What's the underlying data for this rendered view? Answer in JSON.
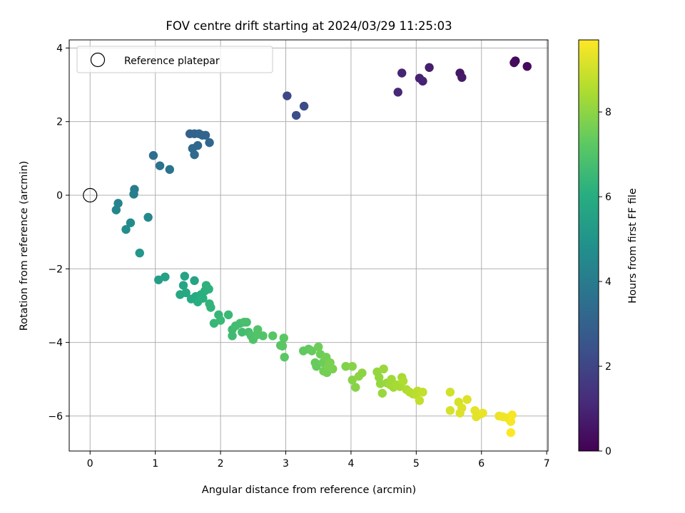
{
  "chart_data": {
    "type": "scatter",
    "title": "FOV centre drift starting at 2024/03/29 11:25:03",
    "xlabel": "Angular distance from reference (arcmin)",
    "ylabel": "Rotation from reference (arcmin)",
    "colorbar_label": "Hours from first FF file",
    "colormap": "viridis",
    "xlim": [
      -0.32,
      7.02
    ],
    "ylim": [
      -6.95,
      4.22
    ],
    "xticks": [
      0,
      1,
      2,
      3,
      4,
      5,
      6,
      7
    ],
    "yticks": [
      -6,
      -4,
      -2,
      0,
      2,
      4
    ],
    "colorbar_range": [
      0,
      9.7
    ],
    "colorbar_ticks": [
      0,
      2,
      4,
      6,
      8
    ],
    "grid": true,
    "legend": {
      "placement": "upper-left",
      "entries": [
        {
          "label": "Reference platepar",
          "marker": "open-circle"
        }
      ]
    },
    "reference": {
      "x": 0,
      "y": 0
    },
    "points": [
      {
        "x": 6.52,
        "y": 3.65,
        "t": 0.2
      },
      {
        "x": 6.5,
        "y": 3.6,
        "t": 0.3
      },
      {
        "x": 6.7,
        "y": 3.5,
        "t": 0.25
      },
      {
        "x": 5.67,
        "y": 3.32,
        "t": 0.6
      },
      {
        "x": 5.7,
        "y": 3.2,
        "t": 0.65
      },
      {
        "x": 5.2,
        "y": 3.47,
        "t": 0.8
      },
      {
        "x": 5.05,
        "y": 3.18,
        "t": 0.9
      },
      {
        "x": 5.1,
        "y": 3.1,
        "t": 0.95
      },
      {
        "x": 4.78,
        "y": 3.32,
        "t": 1.0
      },
      {
        "x": 4.72,
        "y": 2.8,
        "t": 1.1
      },
      {
        "x": 3.02,
        "y": 2.7,
        "t": 2.1
      },
      {
        "x": 3.28,
        "y": 2.42,
        "t": 2.2
      },
      {
        "x": 3.16,
        "y": 2.17,
        "t": 2.3
      },
      {
        "x": 1.53,
        "y": 1.67,
        "t": 3.0
      },
      {
        "x": 1.6,
        "y": 1.67,
        "t": 3.05
      },
      {
        "x": 1.67,
        "y": 1.67,
        "t": 3.1
      },
      {
        "x": 1.72,
        "y": 1.63,
        "t": 3.1
      },
      {
        "x": 1.77,
        "y": 1.63,
        "t": 3.15
      },
      {
        "x": 1.83,
        "y": 1.43,
        "t": 3.2
      },
      {
        "x": 1.65,
        "y": 1.35,
        "t": 3.25
      },
      {
        "x": 1.57,
        "y": 1.27,
        "t": 3.3
      },
      {
        "x": 1.6,
        "y": 1.1,
        "t": 3.35
      },
      {
        "x": 0.97,
        "y": 1.08,
        "t": 3.5
      },
      {
        "x": 1.07,
        "y": 0.8,
        "t": 3.6
      },
      {
        "x": 1.22,
        "y": 0.7,
        "t": 3.7
      },
      {
        "x": 0.68,
        "y": 0.16,
        "t": 4.0
      },
      {
        "x": 0.67,
        "y": 0.03,
        "t": 4.1
      },
      {
        "x": 0.43,
        "y": -0.22,
        "t": 4.3
      },
      {
        "x": 0.4,
        "y": -0.4,
        "t": 4.4
      },
      {
        "x": 0.89,
        "y": -0.6,
        "t": 4.5
      },
      {
        "x": 0.62,
        "y": -0.75,
        "t": 4.6
      },
      {
        "x": 0.55,
        "y": -0.93,
        "t": 4.7
      },
      {
        "x": 0.76,
        "y": -1.57,
        "t": 5.1
      },
      {
        "x": 1.05,
        "y": -2.3,
        "t": 5.4
      },
      {
        "x": 1.15,
        "y": -2.22,
        "t": 5.5
      },
      {
        "x": 1.45,
        "y": -2.2,
        "t": 5.6
      },
      {
        "x": 1.6,
        "y": -2.32,
        "t": 5.6
      },
      {
        "x": 1.43,
        "y": -2.45,
        "t": 5.7
      },
      {
        "x": 1.38,
        "y": -2.7,
        "t": 5.8
      },
      {
        "x": 1.47,
        "y": -2.65,
        "t": 5.8
      },
      {
        "x": 1.55,
        "y": -2.82,
        "t": 5.9
      },
      {
        "x": 1.62,
        "y": -2.75,
        "t": 5.9
      },
      {
        "x": 1.65,
        "y": -2.9,
        "t": 6.0
      },
      {
        "x": 1.7,
        "y": -2.7,
        "t": 6.0
      },
      {
        "x": 1.73,
        "y": -2.8,
        "t": 6.1
      },
      {
        "x": 1.76,
        "y": -2.6,
        "t": 6.1
      },
      {
        "x": 1.78,
        "y": -2.45,
        "t": 6.2
      },
      {
        "x": 1.82,
        "y": -2.55,
        "t": 6.2
      },
      {
        "x": 1.83,
        "y": -2.95,
        "t": 6.3
      },
      {
        "x": 1.85,
        "y": -3.05,
        "t": 6.3
      },
      {
        "x": 1.9,
        "y": -3.48,
        "t": 6.4
      },
      {
        "x": 1.97,
        "y": -3.25,
        "t": 6.4
      },
      {
        "x": 2.0,
        "y": -3.4,
        "t": 6.5
      },
      {
        "x": 2.12,
        "y": -3.25,
        "t": 6.5
      },
      {
        "x": 2.18,
        "y": -3.65,
        "t": 6.6
      },
      {
        "x": 2.18,
        "y": -3.82,
        "t": 6.6
      },
      {
        "x": 2.23,
        "y": -3.55,
        "t": 6.7
      },
      {
        "x": 2.3,
        "y": -3.48,
        "t": 6.7
      },
      {
        "x": 2.33,
        "y": -3.72,
        "t": 6.7
      },
      {
        "x": 2.36,
        "y": -3.45,
        "t": 6.8
      },
      {
        "x": 2.4,
        "y": -3.45,
        "t": 6.8
      },
      {
        "x": 2.43,
        "y": -3.72,
        "t": 6.8
      },
      {
        "x": 2.47,
        "y": -3.82,
        "t": 6.9
      },
      {
        "x": 2.5,
        "y": -3.92,
        "t": 6.9
      },
      {
        "x": 2.55,
        "y": -3.8,
        "t": 7.0
      },
      {
        "x": 2.57,
        "y": -3.65,
        "t": 7.0
      },
      {
        "x": 2.65,
        "y": -3.82,
        "t": 7.0
      },
      {
        "x": 2.8,
        "y": -3.82,
        "t": 7.1
      },
      {
        "x": 2.92,
        "y": -4.08,
        "t": 7.1
      },
      {
        "x": 2.95,
        "y": -4.1,
        "t": 7.2
      },
      {
        "x": 2.97,
        "y": -3.88,
        "t": 7.2
      },
      {
        "x": 2.98,
        "y": -4.4,
        "t": 7.2
      },
      {
        "x": 3.27,
        "y": -4.23,
        "t": 7.3
      },
      {
        "x": 3.35,
        "y": -4.18,
        "t": 7.3
      },
      {
        "x": 3.4,
        "y": -4.23,
        "t": 7.4
      },
      {
        "x": 3.45,
        "y": -4.55,
        "t": 7.4
      },
      {
        "x": 3.47,
        "y": -4.65,
        "t": 7.4
      },
      {
        "x": 3.5,
        "y": -4.12,
        "t": 7.5
      },
      {
        "x": 3.53,
        "y": -4.32,
        "t": 7.5
      },
      {
        "x": 3.57,
        "y": -4.55,
        "t": 7.5
      },
      {
        "x": 3.58,
        "y": -4.78,
        "t": 7.6
      },
      {
        "x": 3.62,
        "y": -4.4,
        "t": 7.6
      },
      {
        "x": 3.63,
        "y": -4.82,
        "t": 7.6
      },
      {
        "x": 3.65,
        "y": -4.65,
        "t": 7.7
      },
      {
        "x": 3.68,
        "y": -4.55,
        "t": 7.7
      },
      {
        "x": 3.72,
        "y": -4.72,
        "t": 7.7
      },
      {
        "x": 3.92,
        "y": -4.65,
        "t": 7.8
      },
      {
        "x": 4.02,
        "y": -4.65,
        "t": 7.9
      },
      {
        "x": 4.02,
        "y": -5.02,
        "t": 7.9
      },
      {
        "x": 4.07,
        "y": -5.22,
        "t": 7.9
      },
      {
        "x": 4.12,
        "y": -4.92,
        "t": 8.0
      },
      {
        "x": 4.17,
        "y": -4.83,
        "t": 8.0
      },
      {
        "x": 4.4,
        "y": -4.8,
        "t": 8.1
      },
      {
        "x": 4.43,
        "y": -4.95,
        "t": 8.1
      },
      {
        "x": 4.45,
        "y": -5.12,
        "t": 8.1
      },
      {
        "x": 4.48,
        "y": -5.38,
        "t": 8.2
      },
      {
        "x": 4.5,
        "y": -4.72,
        "t": 8.2
      },
      {
        "x": 4.55,
        "y": -5.1,
        "t": 8.2
      },
      {
        "x": 4.6,
        "y": -5.15,
        "t": 8.3
      },
      {
        "x": 4.62,
        "y": -5.0,
        "t": 8.3
      },
      {
        "x": 4.65,
        "y": -5.22,
        "t": 8.3
      },
      {
        "x": 4.7,
        "y": -5.15,
        "t": 8.4
      },
      {
        "x": 4.75,
        "y": -5.2,
        "t": 8.4
      },
      {
        "x": 4.78,
        "y": -4.95,
        "t": 8.4
      },
      {
        "x": 4.8,
        "y": -5.05,
        "t": 8.5
      },
      {
        "x": 4.85,
        "y": -5.28,
        "t": 8.5
      },
      {
        "x": 4.9,
        "y": -5.35,
        "t": 8.6
      },
      {
        "x": 4.95,
        "y": -5.4,
        "t": 8.6
      },
      {
        "x": 5.0,
        "y": -5.42,
        "t": 8.7
      },
      {
        "x": 5.02,
        "y": -5.32,
        "t": 8.7
      },
      {
        "x": 5.05,
        "y": -5.58,
        "t": 8.8
      },
      {
        "x": 5.1,
        "y": -5.35,
        "t": 8.8
      },
      {
        "x": 5.52,
        "y": -5.35,
        "t": 9.0
      },
      {
        "x": 5.52,
        "y": -5.85,
        "t": 9.1
      },
      {
        "x": 5.65,
        "y": -5.62,
        "t": 9.1
      },
      {
        "x": 5.67,
        "y": -5.92,
        "t": 9.2
      },
      {
        "x": 5.7,
        "y": -5.78,
        "t": 9.2
      },
      {
        "x": 5.78,
        "y": -5.55,
        "t": 9.2
      },
      {
        "x": 5.9,
        "y": -5.85,
        "t": 9.3
      },
      {
        "x": 5.92,
        "y": -6.02,
        "t": 9.3
      },
      {
        "x": 5.98,
        "y": -5.95,
        "t": 9.3
      },
      {
        "x": 6.02,
        "y": -5.92,
        "t": 9.4
      },
      {
        "x": 6.27,
        "y": -6.0,
        "t": 9.4
      },
      {
        "x": 6.33,
        "y": -6.02,
        "t": 9.5
      },
      {
        "x": 6.4,
        "y": -6.05,
        "t": 9.5
      },
      {
        "x": 6.45,
        "y": -6.15,
        "t": 9.6
      },
      {
        "x": 6.47,
        "y": -5.97,
        "t": 9.6
      },
      {
        "x": 6.45,
        "y": -6.45,
        "t": 9.7
      }
    ]
  }
}
